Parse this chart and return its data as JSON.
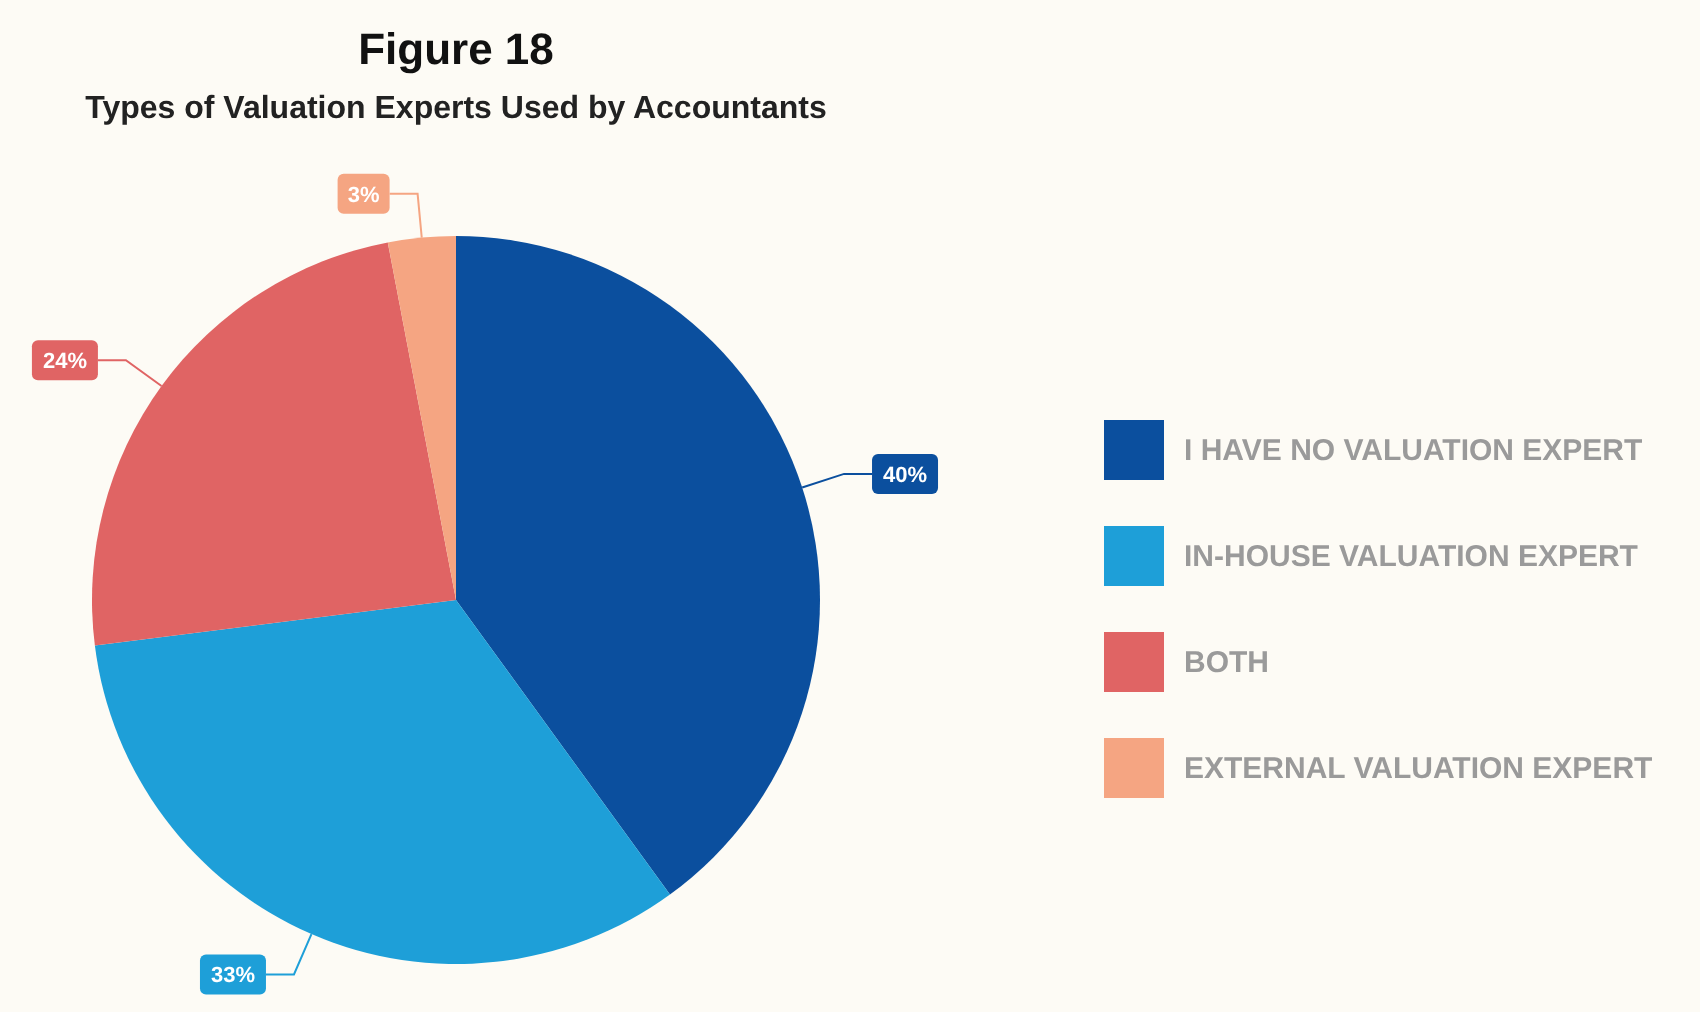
{
  "chart_data": {
    "type": "pie",
    "title": "Figure 18",
    "subtitle": "Types of Valuation Experts Used by Accountants",
    "categories": [
      "I HAVE NO VALUATION EXPERT",
      "IN-HOUSE VALUATION EXPERT",
      "BOTH",
      "EXTERNAL VALUATION EXPERT"
    ],
    "values": [
      40,
      33,
      24,
      3
    ],
    "colors": [
      "#0b4f9e",
      "#1e9fd8",
      "#e06464",
      "#f5a582"
    ],
    "value_labels": [
      "40%",
      "33%",
      "24%",
      "3%"
    ],
    "legend": "right"
  }
}
